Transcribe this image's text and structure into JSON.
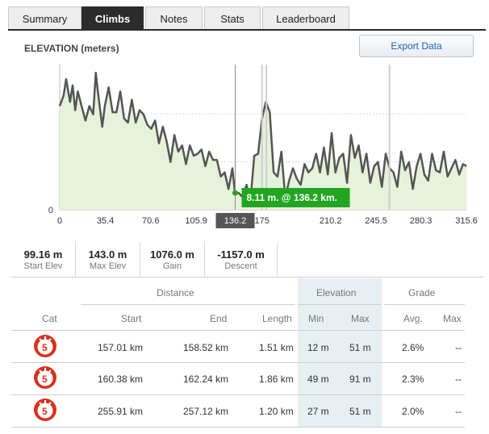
{
  "tabs": [
    {
      "label": "Summary",
      "active": false
    },
    {
      "label": "Climbs",
      "active": true
    },
    {
      "label": "Notes",
      "active": false
    },
    {
      "label": "Stats",
      "active": false
    },
    {
      "label": "Leaderboard",
      "active": false
    }
  ],
  "chart": {
    "title": "ELEVATION (meters)",
    "export_label": "Export Data",
    "hover_x_label": "136.2",
    "tooltip": "8.11 m. @ 136.2 km.",
    "colors": {
      "line": "#555555",
      "fill": "#e6f2da",
      "tooltip": "#22a622",
      "marker": "#555555"
    }
  },
  "chart_data": {
    "type": "area",
    "xlabel": "",
    "ylabel": "ELEVATION (meters)",
    "x_ticks": [
      "0",
      "35.4",
      "70.6",
      "105.9",
      "136.2",
      "175",
      "210.2",
      "245.5",
      "280.3",
      "315.6"
    ],
    "y_ticks": [
      "0"
    ],
    "xlim": [
      0,
      315.6
    ],
    "grid": true,
    "highlights": [
      157.01,
      160.38,
      255.91
    ],
    "series": [
      {
        "x": [
          0,
          3,
          5,
          8,
          10,
          12,
          14,
          17,
          20,
          23,
          26,
          28,
          30,
          33,
          35,
          38,
          41,
          44,
          47,
          50,
          53,
          56,
          59,
          62,
          65,
          68,
          71,
          74,
          77,
          80,
          83,
          86,
          89,
          92,
          95,
          98,
          101,
          104,
          107,
          110,
          113,
          116,
          119,
          122,
          125,
          128,
          131,
          134,
          136,
          139,
          142,
          145,
          148,
          151,
          154,
          157,
          160,
          163,
          166,
          169,
          172,
          175,
          178,
          181,
          184,
          187,
          190,
          193,
          196,
          199,
          202,
          205,
          208,
          211,
          214,
          217,
          220,
          223,
          226,
          229,
          232,
          235,
          238,
          241,
          244,
          247,
          250,
          253,
          256,
          259,
          262,
          265,
          268,
          271,
          274,
          277,
          280,
          283,
          286,
          289,
          292,
          295,
          298,
          301,
          304,
          307,
          310,
          313,
          315.6
        ],
        "values": [
          50,
          55,
          63,
          52,
          60,
          48,
          57,
          50,
          43,
          50,
          46,
          66,
          55,
          40,
          50,
          59,
          47,
          47,
          57,
          44,
          42,
          53,
          42,
          48,
          46,
          41,
          39,
          43,
          32,
          40,
          33,
          23,
          36,
          28,
          31,
          22,
          31,
          26,
          27,
          29,
          21,
          28,
          24,
          24,
          16,
          18,
          10,
          20,
          8,
          8,
          6,
          12,
          4,
          26,
          27,
          44,
          52,
          47,
          18,
          16,
          28,
          6,
          14,
          20,
          15,
          12,
          22,
          18,
          20,
          27,
          18,
          30,
          17,
          37,
          18,
          25,
          27,
          13,
          36,
          25,
          31,
          18,
          27,
          13,
          21,
          23,
          11,
          27,
          20,
          18,
          11,
          28,
          19,
          23,
          10,
          21,
          27,
          17,
          14,
          27,
          19,
          18,
          28,
          16,
          20,
          24,
          17,
          22,
          21
        ]
      }
    ]
  },
  "stats": [
    {
      "value": "99.16 m",
      "label": "Start Elev"
    },
    {
      "value": "143.0 m",
      "label": "Max Elev"
    },
    {
      "value": "1076.0 m",
      "label": "Gain"
    },
    {
      "value": "-1157.0 m",
      "label": "Descent"
    }
  ],
  "table": {
    "groups": {
      "distance": "Distance",
      "elevation": "Elevation",
      "grade": "Grade"
    },
    "columns": {
      "cat": "Cat",
      "start": "Start",
      "end": "End",
      "length": "Length",
      "min": "Min",
      "max": "Max",
      "avg": "Avg.",
      "gmax": "Max"
    },
    "rows": [
      {
        "cat": "5",
        "start": "157.01 km",
        "end": "158.52 km",
        "length": "1.51 km",
        "min": "12 m",
        "max": "51 m",
        "avg": "2.6%",
        "gmax": "--"
      },
      {
        "cat": "5",
        "start": "160.38 km",
        "end": "162.24 km",
        "length": "1.86 km",
        "min": "49 m",
        "max": "91 m",
        "avg": "2.3%",
        "gmax": "--"
      },
      {
        "cat": "5",
        "start": "255.91 km",
        "end": "257.12 km",
        "length": "1.20 km",
        "min": "27 m",
        "max": "51 m",
        "avg": "2.0%",
        "gmax": "--"
      }
    ],
    "cat_icon_colors": {
      "ring": "#d8311f",
      "inner": "#ffffff",
      "text": "#d8311f"
    }
  }
}
